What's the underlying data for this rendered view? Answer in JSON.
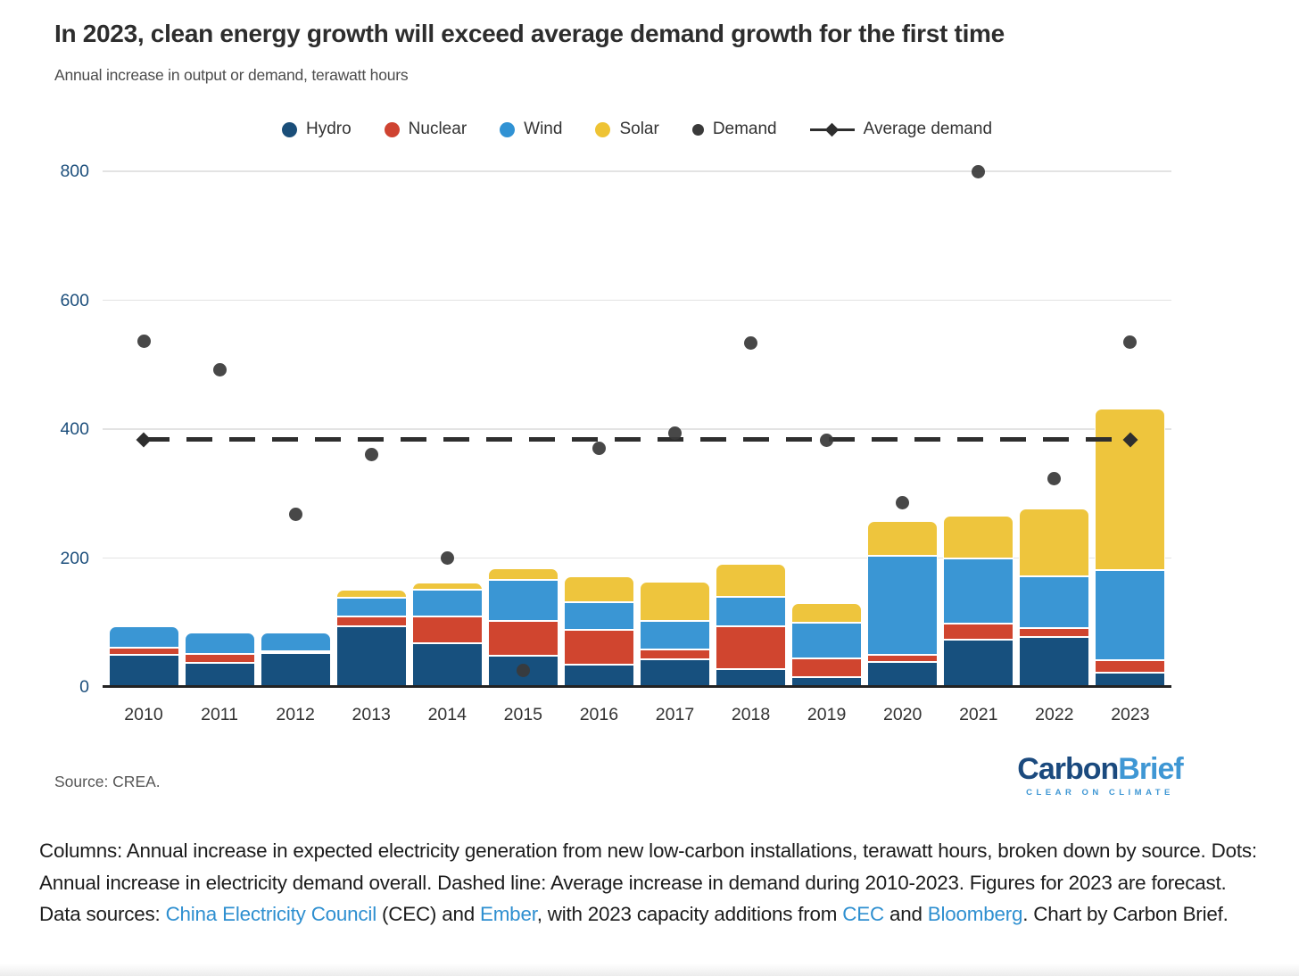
{
  "header": {
    "title": "In 2023, clean energy growth will exceed average demand growth for the first time",
    "subtitle": "Annual increase in output or demand, terawatt hours"
  },
  "legend": {
    "items": [
      {
        "label": "Hydro",
        "type": "circle",
        "color": "#1a4e79"
      },
      {
        "label": "Nuclear",
        "type": "circle",
        "color": "#cf4331"
      },
      {
        "label": "Wind",
        "type": "circle",
        "color": "#3092d4"
      },
      {
        "label": "Solar",
        "type": "circle",
        "color": "#eec334"
      },
      {
        "label": "Demand",
        "type": "dot",
        "color": "#3a3a3a"
      },
      {
        "label": "Average demand",
        "type": "dash-diamond",
        "color": "#2e2e2e"
      }
    ]
  },
  "chart_data": {
    "type": "bar",
    "stacked": true,
    "title": "In 2023, clean energy growth will exceed average demand growth for the first time",
    "ylabel": "Annual increase in output or demand, terawatt hours",
    "xlabel": "",
    "categories": [
      "2010",
      "2011",
      "2012",
      "2013",
      "2014",
      "2015",
      "2016",
      "2017",
      "2018",
      "2019",
      "2020",
      "2021",
      "2022",
      "2023"
    ],
    "series": [
      {
        "name": "Hydro",
        "color": "#17507e",
        "values": [
          50,
          38,
          52,
          94,
          68,
          49,
          35,
          43,
          28,
          15,
          39,
          73,
          77,
          22
        ]
      },
      {
        "name": "Nuclear",
        "color": "#d0452f",
        "values": [
          11,
          13,
          4,
          15,
          42,
          54,
          53,
          15,
          66,
          29,
          11,
          25,
          14,
          19
        ]
      },
      {
        "name": "Wind",
        "color": "#3a96d4",
        "values": [
          33,
          33,
          29,
          30,
          41,
          63,
          43,
          44,
          46,
          55,
          153,
          101,
          81,
          140
        ]
      },
      {
        "name": "Solar",
        "color": "#eec53d",
        "values": [
          0,
          0,
          0,
          12,
          11,
          18,
          40,
          62,
          51,
          31,
          55,
          67,
          105,
          251
        ]
      }
    ],
    "points": {
      "name": "Demand",
      "color": "#3a3a3a",
      "values": [
        536,
        492,
        268,
        360,
        200,
        26,
        370,
        394,
        533,
        383,
        286,
        800,
        323,
        535
      ]
    },
    "reference_line": {
      "name": "Average demand",
      "value": 384,
      "style": "dashed",
      "color": "#2e2e2e"
    },
    "ylim": [
      0,
      800
    ],
    "yticks": [
      0,
      200,
      400,
      600,
      800
    ],
    "grid": "horizontal",
    "legend_position": "top"
  },
  "footer": {
    "source": "Source: CREA.",
    "logo": {
      "part1": "Carbon",
      "part2": "Brief",
      "tagline": "CLEAR ON CLIMATE"
    }
  },
  "caption": {
    "segments": [
      {
        "text": "Columns: Annual increase in expected electricity generation from new low-carbon installations, terawatt hours, broken down by source. Dots: Annual increase in electricity demand overall. Dashed line: Average increase in demand during 2010-2023. Figures for 2023 are forecast. Data sources: ",
        "link": false
      },
      {
        "text": "China Electricity Council",
        "link": true
      },
      {
        "text": " (CEC) and ",
        "link": false
      },
      {
        "text": "Ember",
        "link": true
      },
      {
        "text": ", with 2023 capacity additions from ",
        "link": false
      },
      {
        "text": "CEC",
        "link": true
      },
      {
        "text": " and ",
        "link": false
      },
      {
        "text": "Bloomberg",
        "link": true
      },
      {
        "text": ". Chart by Carbon Brief.",
        "link": false
      }
    ]
  }
}
